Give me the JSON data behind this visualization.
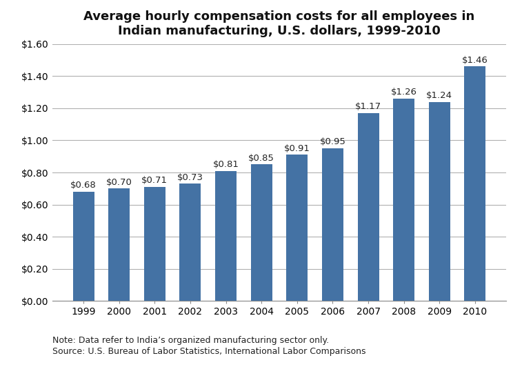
{
  "title": "Average hourly compensation costs for all employees in\nIndian manufacturing, U.S. dollars, 1999-2010",
  "years": [
    1999,
    2000,
    2001,
    2002,
    2003,
    2004,
    2005,
    2006,
    2007,
    2008,
    2009,
    2010
  ],
  "values": [
    0.68,
    0.7,
    0.71,
    0.73,
    0.81,
    0.85,
    0.91,
    0.95,
    1.17,
    1.26,
    1.24,
    1.46
  ],
  "bar_color": "#4472a4",
  "ylim": [
    0,
    1.6
  ],
  "yticks": [
    0.0,
    0.2,
    0.4,
    0.6,
    0.8,
    1.0,
    1.2,
    1.4,
    1.6
  ],
  "note_line1": "Note: Data refer to India’s organized manufacturing sector only.",
  "note_line2": "Source: U.S. Bureau of Labor Statistics, International Labor Comparisons",
  "background_color": "#ffffff",
  "grid_color": "#b0b0b0",
  "title_fontsize": 13,
  "tick_fontsize": 10,
  "label_fontsize": 9.5,
  "note_fontsize": 9
}
